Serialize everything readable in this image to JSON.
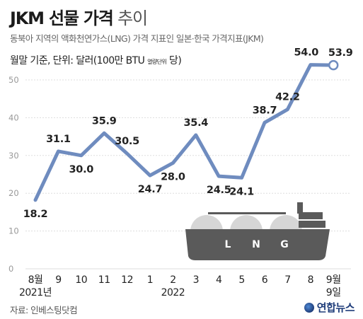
{
  "header": {
    "title_main": "JKM 선물 가격",
    "title_light": "추이",
    "subtitle": "동북아 지역의 액화천연가스(LNG) 가격 지표인 일본·한국 가격지표(JKM)",
    "unit_main": "월말 기준, 단위: 달러(100만 BTU",
    "unit_small": "열량단위",
    "unit_end": "당)"
  },
  "footer": {
    "source": "자료: 인베스팅닷컴",
    "brand": "연합뉴스"
  },
  "ship_labels": [
    "L",
    "N",
    "G"
  ],
  "colors": {
    "line": "#6f8cbf",
    "point": "#6f8cbf",
    "last_point_fill": "#ffffff",
    "grid": "#dddddd",
    "ship_hull": "#5a5a5a",
    "ship_tank": "#d6d6d6"
  },
  "chart_data": {
    "type": "line",
    "title": "JKM 선물 가격 추이",
    "categories": [
      "8월",
      "9",
      "10",
      "11",
      "12",
      "1",
      "2",
      "3",
      "4",
      "5",
      "6",
      "7",
      "8",
      "9월"
    ],
    "category_sublabels": [
      "2021년",
      "",
      "",
      "",
      "",
      "",
      "2022",
      "",
      "",
      "",
      "",
      "",
      "",
      "9일"
    ],
    "values": [
      18.2,
      31.1,
      30.0,
      35.9,
      30.5,
      24.7,
      28.0,
      35.4,
      24.5,
      24.1,
      38.7,
      42.2,
      54.0,
      53.9
    ],
    "value_labels": [
      "18.2",
      "31.1",
      "30.0",
      "35.9",
      "30.5",
      "24.7",
      "28.0",
      "35.4",
      "24.5",
      "24.1",
      "38.7",
      "42.2",
      "54.0",
      "53.9"
    ],
    "ylim": [
      0,
      55
    ],
    "yticks": [
      "0",
      "10",
      "20",
      "30",
      "40",
      "50"
    ],
    "ytick_values": [
      0,
      10,
      20,
      30,
      40,
      50
    ],
    "grid": true,
    "last_point_hollow": true
  }
}
